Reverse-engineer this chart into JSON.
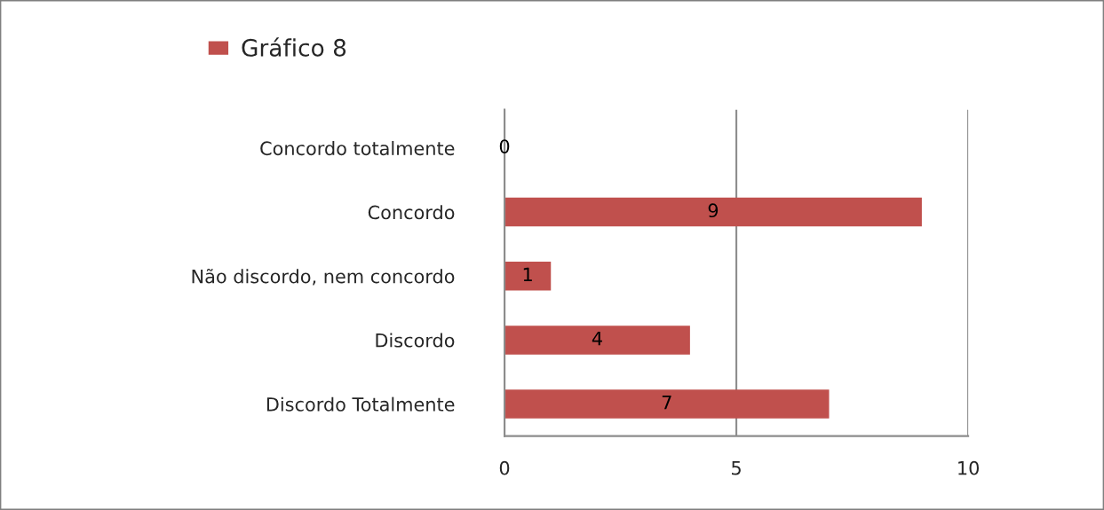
{
  "chart_data": {
    "type": "bar",
    "orientation": "horizontal",
    "categories": [
      "Concordo totalmente",
      "Concordo",
      "Não discordo, nem concordo",
      "Discordo",
      "Discordo Totalmente"
    ],
    "series": [
      {
        "name": "Gráfico 8",
        "color": "#c0504d",
        "values": [
          0,
          9,
          1,
          4,
          7
        ]
      }
    ],
    "xlim": [
      0,
      10
    ],
    "xticks": [
      0,
      5,
      10
    ],
    "grid": "x",
    "legend": "top left",
    "data_labels": true
  }
}
